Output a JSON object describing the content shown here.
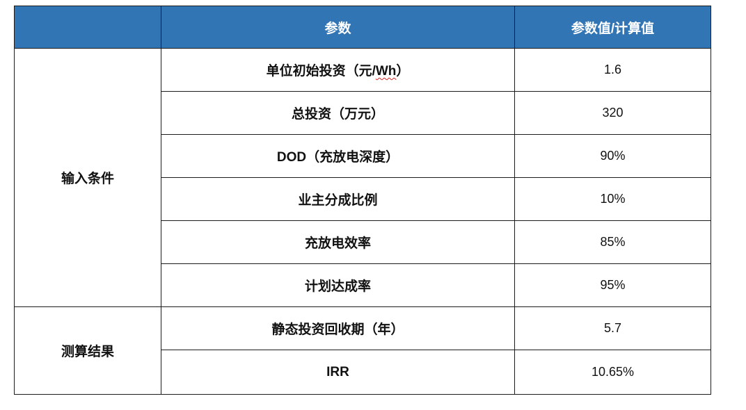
{
  "header": {
    "col1": "",
    "col2": "参数",
    "col3": "参数值/计算值"
  },
  "groups": {
    "input": "输入条件",
    "result": "测算结果"
  },
  "rows": [
    {
      "param_prefix": "单位初始投资（元/",
      "param_squiggle": "Wh",
      "param_suffix": "）",
      "value": "1.6"
    },
    {
      "param": "总投资（万元）",
      "value": "320"
    },
    {
      "param": "DOD（充放电深度）",
      "value": "90%"
    },
    {
      "param": "业主分成比例",
      "value": "10%"
    },
    {
      "param": "充放电效率",
      "value": "85%"
    },
    {
      "param": "计划达成率",
      "value": "95%"
    },
    {
      "param": "静态投资回收期（年）",
      "value": "5.7"
    },
    {
      "param": "IRR",
      "value": "10.65%"
    }
  ],
  "colors": {
    "header_bg": "#3175B5",
    "header_text": "#FFFFFF",
    "border": "#1A1A1A"
  }
}
